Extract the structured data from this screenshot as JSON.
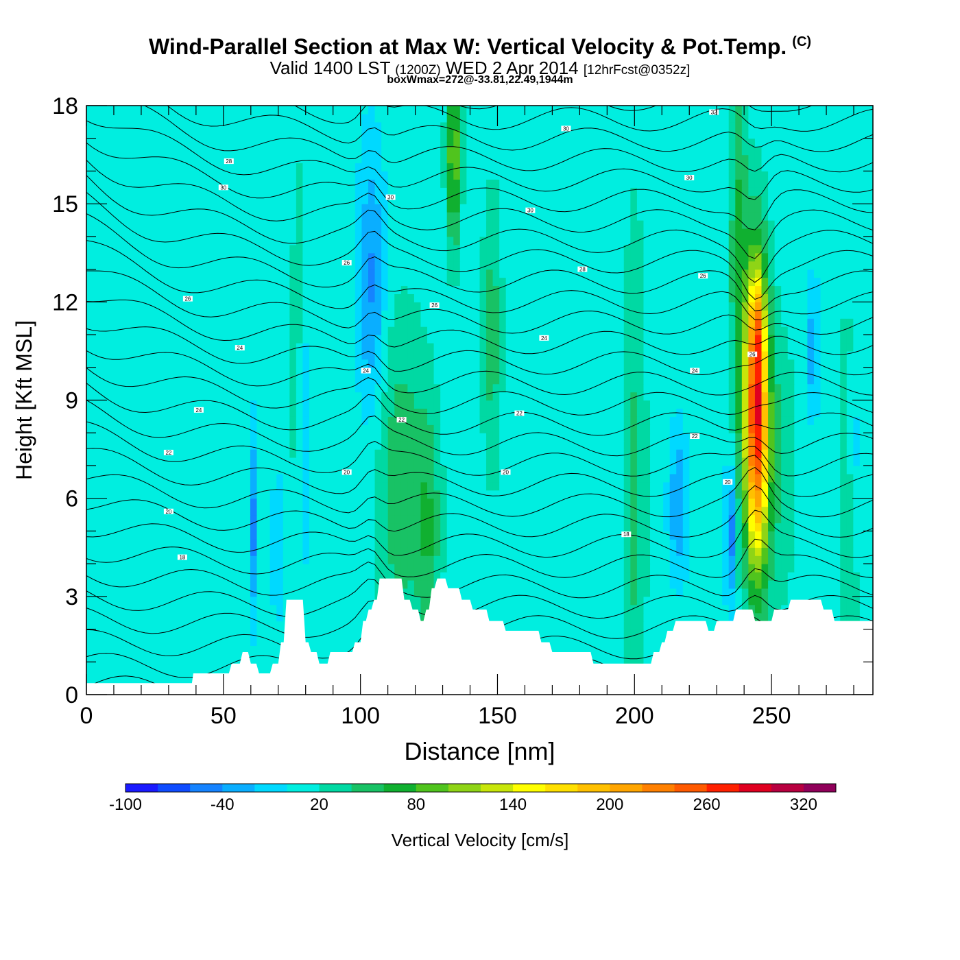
{
  "title": {
    "main": "Wind-Parallel Section at Max W: Vertical Velocity & Pot.Temp.",
    "copyright": "(C)",
    "valid_prefix": "Valid 1400 LST",
    "valid_utc": "(1200Z)",
    "valid_date": "WED 2 Apr 2014",
    "forecast": "[12hrFcst@0352z]",
    "box_info": "boxWmax=272@-33.81,22.49,1944m"
  },
  "chart_data": {
    "type": "heatmap",
    "xlabel": "Distance [nm]",
    "ylabel": "Height [Kft MSL]",
    "xlim": [
      0,
      287
    ],
    "ylim": [
      0,
      18
    ],
    "x_ticks": [
      0,
      50,
      100,
      150,
      200,
      250
    ],
    "y_ticks": [
      0,
      3,
      6,
      9,
      12,
      15,
      18
    ],
    "colorbar": {
      "title": "Vertical Velocity [cm/s]",
      "labels": [
        "-100",
        "-40",
        "20",
        "80",
        "140",
        "200",
        "260",
        "320"
      ],
      "label_values": [
        -100,
        -40,
        20,
        80,
        140,
        200,
        260,
        320
      ],
      "levels": [
        -100,
        -80,
        -60,
        -40,
        -20,
        0,
        20,
        40,
        60,
        80,
        100,
        120,
        140,
        160,
        180,
        200,
        220,
        240,
        260,
        280,
        300,
        320,
        340
      ],
      "colors": [
        "#1a1aff",
        "#0f4cff",
        "#1583ff",
        "#0aaeff",
        "#00d9ff",
        "#00eee0",
        "#00d9a3",
        "#18c265",
        "#10b030",
        "#50c41e",
        "#8fd416",
        "#c8e60a",
        "#ffff00",
        "#ffe000",
        "#ffc000",
        "#ffa500",
        "#ff8000",
        "#ff5a00",
        "#ff2000",
        "#e00020",
        "#b80040",
        "#90005a"
      ]
    },
    "background_w": 10,
    "updrafts": [
      {
        "x": 244.5,
        "y": 8.5,
        "sx": 3.0,
        "sy": 3.2,
        "w": 265
      },
      {
        "x": 244.5,
        "y": 11.3,
        "sx": 1.6,
        "sy": 1.1,
        "w": 60
      },
      {
        "x": 238.0,
        "y": 13.5,
        "sx": 2.2,
        "sy": 4.5,
        "w": 55
      },
      {
        "x": 134.0,
        "y": 16.5,
        "sx": 1.8,
        "sy": 2.0,
        "w": 90
      },
      {
        "x": 115.0,
        "y": 6.5,
        "sx": 7.0,
        "sy": 3.5,
        "w": 45
      },
      {
        "x": 125.0,
        "y": 5.0,
        "sx": 3.0,
        "sy": 2.5,
        "w": 40
      },
      {
        "x": 148.0,
        "y": 11.0,
        "sx": 2.5,
        "sy": 3.0,
        "w": 40
      },
      {
        "x": 200.0,
        "y": 6.0,
        "sx": 3.0,
        "sy": 6.0,
        "w": 35
      },
      {
        "x": 252.0,
        "y": 7.0,
        "sx": 5.0,
        "sy": 3.0,
        "w": 30
      },
      {
        "x": 278.0,
        "y": 5.0,
        "sx": 2.5,
        "sy": 5.0,
        "w": 30
      },
      {
        "x": 77.0,
        "y": 10.0,
        "sx": 1.5,
        "sy": 5.0,
        "w": 25
      }
    ],
    "downdrafts": [
      {
        "x": 104.0,
        "y": 12.5,
        "sx": 3.5,
        "sy": 3.0,
        "w": -55
      },
      {
        "x": 61.0,
        "y": 5.2,
        "sx": 1.2,
        "sy": 2.0,
        "w": -55
      },
      {
        "x": 234.8,
        "y": 5.0,
        "sx": 1.2,
        "sy": 1.5,
        "w": -75
      },
      {
        "x": 216.0,
        "y": 5.8,
        "sx": 2.5,
        "sy": 1.6,
        "w": -50
      },
      {
        "x": 265.0,
        "y": 10.5,
        "sx": 2.0,
        "sy": 1.5,
        "w": -40
      },
      {
        "x": 280.0,
        "y": 7.5,
        "sx": 1.2,
        "sy": 2.0,
        "w": -35
      },
      {
        "x": 79.0,
        "y": 7.5,
        "sx": 1.5,
        "sy": 3.0,
        "w": -30
      },
      {
        "x": 70.0,
        "y": 4.5,
        "sx": 2.0,
        "sy": 1.5,
        "w": -30
      }
    ],
    "theta_contour_labels": [
      {
        "x": 50,
        "y": 15.5,
        "text": "30"
      },
      {
        "x": 95,
        "y": 13.2,
        "text": "26"
      },
      {
        "x": 37,
        "y": 12.1,
        "text": "26"
      },
      {
        "x": 56,
        "y": 10.6,
        "text": "24"
      },
      {
        "x": 102,
        "y": 9.9,
        "text": "24"
      },
      {
        "x": 41,
        "y": 8.7,
        "text": "24"
      },
      {
        "x": 115,
        "y": 8.4,
        "text": "22"
      },
      {
        "x": 30,
        "y": 7.4,
        "text": "22"
      },
      {
        "x": 95,
        "y": 6.8,
        "text": "20"
      },
      {
        "x": 153,
        "y": 6.8,
        "text": "20"
      },
      {
        "x": 30,
        "y": 5.6,
        "text": "20"
      },
      {
        "x": 35,
        "y": 4.2,
        "text": "18"
      },
      {
        "x": 197,
        "y": 4.9,
        "text": "18"
      },
      {
        "x": 234,
        "y": 6.5,
        "text": "20"
      },
      {
        "x": 222,
        "y": 7.9,
        "text": "22"
      },
      {
        "x": 222,
        "y": 9.9,
        "text": "24"
      },
      {
        "x": 243,
        "y": 10.4,
        "text": "26"
      },
      {
        "x": 225,
        "y": 12.8,
        "text": "26"
      },
      {
        "x": 181,
        "y": 13.0,
        "text": "28"
      },
      {
        "x": 127,
        "y": 11.9,
        "text": "26"
      },
      {
        "x": 167,
        "y": 10.9,
        "text": "24"
      },
      {
        "x": 158,
        "y": 8.6,
        "text": "22"
      },
      {
        "x": 111,
        "y": 15.2,
        "text": "30"
      },
      {
        "x": 162,
        "y": 14.8,
        "text": "30"
      },
      {
        "x": 220,
        "y": 15.8,
        "text": "30"
      },
      {
        "x": 175,
        "y": 17.3,
        "text": "30"
      },
      {
        "x": 229,
        "y": 17.8,
        "text": "32"
      },
      {
        "x": 52,
        "y": 16.3,
        "text": "28"
      }
    ],
    "terrain_kft": [
      [
        0,
        0.35
      ],
      [
        30,
        0.35
      ],
      [
        38.5,
        0.35
      ],
      [
        39,
        0.65
      ],
      [
        52,
        0.65
      ],
      [
        53,
        0.95
      ],
      [
        56,
        0.95
      ],
      [
        57,
        1.3
      ],
      [
        59,
        1.3
      ],
      [
        60,
        0.95
      ],
      [
        62,
        0.95
      ],
      [
        63,
        0.65
      ],
      [
        67,
        0.65
      ],
      [
        68,
        0.95
      ],
      [
        70,
        0.95
      ],
      [
        71,
        1.6
      ],
      [
        72,
        1.6
      ],
      [
        73,
        2.9
      ],
      [
        79,
        2.9
      ],
      [
        80,
        1.6
      ],
      [
        81,
        1.6
      ],
      [
        82,
        1.3
      ],
      [
        84,
        1.3
      ],
      [
        85,
        0.95
      ],
      [
        88,
        0.95
      ],
      [
        89,
        1.3
      ],
      [
        97,
        1.3
      ],
      [
        98,
        1.6
      ],
      [
        100,
        1.6
      ],
      [
        101,
        2.25
      ],
      [
        102,
        2.25
      ],
      [
        103,
        2.6
      ],
      [
        104,
        2.6
      ],
      [
        105,
        2.9
      ],
      [
        106,
        2.9
      ],
      [
        107,
        3.55
      ],
      [
        115,
        3.55
      ],
      [
        116,
        2.9
      ],
      [
        118,
        2.9
      ],
      [
        119,
        2.6
      ],
      [
        121,
        2.6
      ],
      [
        122,
        2.25
      ],
      [
        123,
        2.25
      ],
      [
        124,
        2.6
      ],
      [
        125,
        2.6
      ],
      [
        126,
        3.25
      ],
      [
        127,
        3.25
      ],
      [
        128,
        3.55
      ],
      [
        131,
        3.55
      ],
      [
        132,
        3.25
      ],
      [
        136,
        3.25
      ],
      [
        137,
        2.9
      ],
      [
        140,
        2.9
      ],
      [
        141,
        2.6
      ],
      [
        146,
        2.6
      ],
      [
        147,
        2.25
      ],
      [
        152,
        2.25
      ],
      [
        153,
        1.95
      ],
      [
        165,
        1.95
      ],
      [
        166,
        1.6
      ],
      [
        169,
        1.6
      ],
      [
        170,
        1.3
      ],
      [
        184,
        1.3
      ],
      [
        185,
        0.95
      ],
      [
        206,
        0.95
      ],
      [
        207,
        1.3
      ],
      [
        209,
        1.3
      ],
      [
        210,
        1.6
      ],
      [
        211,
        1.6
      ],
      [
        212,
        1.95
      ],
      [
        214,
        1.95
      ],
      [
        215,
        2.25
      ],
      [
        226,
        2.25
      ],
      [
        227,
        1.95
      ],
      [
        229,
        1.95
      ],
      [
        230,
        2.25
      ],
      [
        236,
        2.25
      ],
      [
        237,
        2.6
      ],
      [
        243,
        2.6
      ],
      [
        244,
        2.25
      ],
      [
        250,
        2.25
      ],
      [
        251,
        2.6
      ],
      [
        256,
        2.6
      ],
      [
        257,
        2.9
      ],
      [
        268,
        2.9
      ],
      [
        269,
        2.6
      ],
      [
        272,
        2.6
      ],
      [
        273,
        2.25
      ],
      [
        287,
        2.25
      ]
    ]
  }
}
